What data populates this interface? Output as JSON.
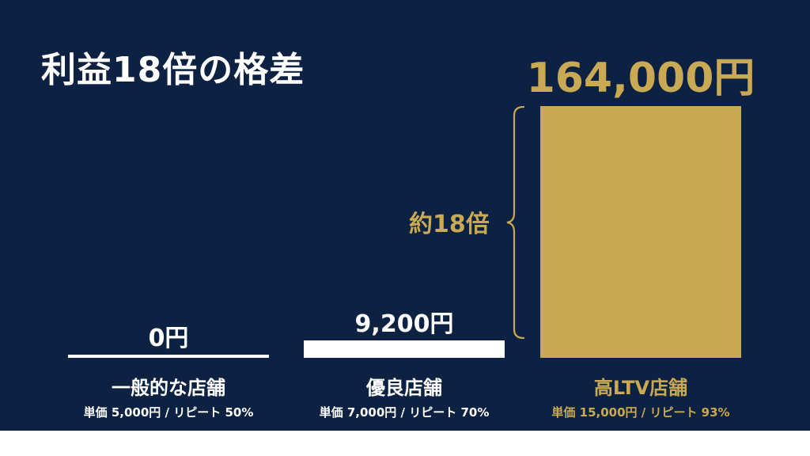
{
  "colors": {
    "background": "#0d2242",
    "white": "#ffffff",
    "gold": "#c9a953"
  },
  "chart_data": {
    "type": "bar",
    "title": "利益18倍の格差",
    "unit": "円",
    "categories": [
      "一般的な店舗",
      "優良店舗",
      "高LTV店舗"
    ],
    "values": [
      0,
      9200,
      164000
    ],
    "value_labels": [
      "0円",
      "9,200円",
      "164,000円"
    ],
    "subtitles": [
      "単価 5,000円 / リピート 50%",
      "単価 7,000円 / リピート 70%",
      "単価 15,000円 / リピート 93%"
    ],
    "highlight_index": 2,
    "annotation": "約18倍",
    "grid": false,
    "legend": false
  }
}
